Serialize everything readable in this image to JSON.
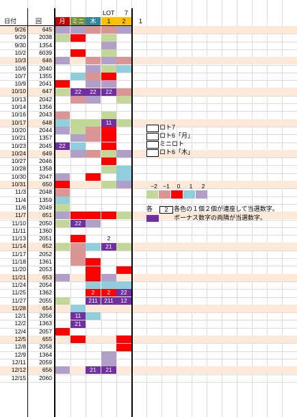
{
  "header": {
    "date_col": "日付",
    "round_col": "回",
    "lot_label": "LOT",
    "seven_label": "7",
    "col_labels": [
      "月",
      "ミニ",
      "木",
      "1",
      "2"
    ],
    "col_header_colors": [
      "#c00000",
      "#76933c",
      "#31869b",
      "#ffc000",
      "#ffc000"
    ],
    "extra_1": "1"
  },
  "colors": {
    "plus2": "#7030a0",
    "plus1": "#b1a0c7",
    "zero": "#ff0000",
    "minus1": "#da9694",
    "minus2": "#c4d79b",
    "cyan": "#92cddc",
    "highlight_row": "#fde9d9"
  },
  "rows": [
    {
      "date": "9/26",
      "num": "645",
      "hl": true,
      "cells": [
        "plus1",
        "plus1",
        "minus1",
        "minus1",
        "plus1"
      ],
      "labels": [
        "",
        "",
        "",
        "",
        ""
      ]
    },
    {
      "date": "9/29",
      "num": "2038",
      "hl": false,
      "cells": [
        "minus2",
        "zero",
        "",
        "minus2",
        ""
      ],
      "labels": [
        "",
        "",
        "",
        "",
        ""
      ]
    },
    {
      "date": "9/30",
      "num": "1354",
      "hl": false,
      "cells": [
        "",
        "",
        "",
        "plus1",
        ""
      ],
      "labels": [
        "",
        "",
        "",
        "",
        ""
      ]
    },
    {
      "date": "10/2",
      "num": "6039",
      "hl": false,
      "cells": [
        "",
        "zero",
        "",
        "minus2",
        ""
      ],
      "labels": [
        "",
        "",
        "",
        "",
        ""
      ]
    },
    {
      "date": "10/3",
      "num": "646",
      "hl": true,
      "cells": [
        "plus1",
        "",
        "minus1",
        "plus1",
        "minus1"
      ],
      "labels": [
        "",
        "",
        "",
        "",
        ""
      ]
    },
    {
      "date": "10/6",
      "num": "2040",
      "hl": false,
      "cells": [
        "",
        "",
        "plus1",
        "minus2",
        "cyan"
      ],
      "labels": [
        "",
        "",
        "",
        "",
        ""
      ]
    },
    {
      "date": "10/7",
      "num": "1355",
      "hl": false,
      "cells": [
        "",
        "cyan",
        "minus1",
        "zero",
        ""
      ],
      "labels": [
        "",
        "",
        "",
        "",
        ""
      ]
    },
    {
      "date": "10/9",
      "num": "2041",
      "hl": false,
      "cells": [
        "zero",
        "",
        "plus1",
        "plus1",
        ""
      ],
      "labels": [
        "",
        "",
        "",
        "",
        ""
      ]
    },
    {
      "date": "10/10",
      "num": "647",
      "hl": true,
      "cells": [
        "minus2",
        "plus2",
        "plus2",
        "plus2",
        "minus1"
      ],
      "labels": [
        "",
        "22",
        "22",
        "22",
        ""
      ]
    },
    {
      "date": "10/13",
      "num": "2042",
      "hl": false,
      "cells": [
        "",
        "minus1",
        "plus1",
        "",
        "minus2"
      ],
      "labels": [
        "",
        "",
        "",
        "",
        ""
      ]
    },
    {
      "date": "10/14",
      "num": "1356",
      "hl": false,
      "cells": [
        "",
        "",
        "",
        "",
        ""
      ],
      "labels": [
        "",
        "",
        "",
        "",
        ""
      ]
    },
    {
      "date": "10/16",
      "num": "2043",
      "hl": false,
      "cells": [
        "minus1",
        "",
        "",
        "minus2",
        ""
      ],
      "labels": [
        "",
        "",
        "",
        "",
        ""
      ]
    },
    {
      "date": "10/17",
      "num": "648",
      "hl": true,
      "cells": [
        "cyan",
        "minus2",
        "minus2",
        "plus2",
        "minus2"
      ],
      "labels": [
        "",
        "",
        "",
        "11",
        ""
      ]
    },
    {
      "date": "10/20",
      "num": "2044",
      "hl": false,
      "cells": [
        "plus1",
        "minus2",
        "minus1",
        "zero",
        ""
      ],
      "labels": [
        "",
        "",
        "",
        "",
        ""
      ]
    },
    {
      "date": "10/21",
      "num": "1357",
      "hl": false,
      "cells": [
        "",
        "plus1",
        "minus1",
        "zero",
        ""
      ],
      "labels": [
        "",
        "",
        "",
        "",
        ""
      ]
    },
    {
      "date": "10/23",
      "num": "2045",
      "hl": false,
      "cells": [
        "plus2",
        "cyan",
        "",
        "zero",
        ""
      ],
      "labels": [
        "22",
        "",
        "",
        "",
        ""
      ]
    },
    {
      "date": "10/24",
      "num": "649",
      "hl": true,
      "cells": [
        "",
        "plus1",
        "minus1",
        "minus2",
        "plus1"
      ],
      "labels": [
        "",
        "",
        "",
        "",
        ""
      ]
    },
    {
      "date": "10/27",
      "num": "2046",
      "hl": false,
      "cells": [
        "",
        "",
        "",
        "zero",
        ""
      ],
      "labels": [
        "",
        "",
        "",
        "",
        ""
      ]
    },
    {
      "date": "10/28",
      "num": "1358",
      "hl": false,
      "cells": [
        "",
        "",
        "",
        "minus2",
        "cyan"
      ],
      "labels": [
        "",
        "",
        "",
        "",
        ""
      ]
    },
    {
      "date": "10/30",
      "num": "2047",
      "hl": false,
      "cells": [
        "plus1",
        "",
        "zero",
        "",
        "cyan"
      ],
      "labels": [
        "",
        "",
        "",
        "",
        ""
      ]
    },
    {
      "date": "10/31",
      "num": "650",
      "hl": true,
      "cells": [
        "zero",
        "",
        "",
        "minus2",
        "plus1"
      ],
      "labels": [
        "",
        "",
        "",
        "",
        ""
      ]
    },
    {
      "date": "11/3",
      "num": "2048",
      "hl": false,
      "cells": [
        "minus1",
        "",
        "",
        "",
        ""
      ],
      "labels": [
        "",
        "",
        "",
        "",
        ""
      ]
    },
    {
      "date": "11/4",
      "num": "1359",
      "hl": false,
      "cells": [
        "cyan",
        "",
        "",
        "",
        ""
      ],
      "labels": [
        "",
        "",
        "",
        "",
        ""
      ]
    },
    {
      "date": "11/6",
      "num": "2049",
      "hl": false,
      "cells": [
        "minus2",
        "",
        "",
        "",
        ""
      ],
      "labels": [
        "",
        "",
        "",
        "",
        ""
      ]
    },
    {
      "date": "11/7",
      "num": "651",
      "hl": true,
      "cells": [
        "plus1",
        "zero",
        "zero",
        "zero",
        "minus2"
      ],
      "labels": [
        "",
        "",
        "",
        "",
        ""
      ]
    },
    {
      "date": "11/10",
      "num": "2050",
      "hl": false,
      "cells": [
        "minus2",
        "plus2",
        "plus1",
        "",
        ""
      ],
      "labels": [
        "",
        "22",
        "",
        "",
        ""
      ]
    },
    {
      "date": "11/11",
      "num": "1360",
      "hl": false,
      "cells": [
        "",
        "",
        "",
        "",
        ""
      ],
      "labels": [
        "",
        "",
        "",
        "",
        ""
      ]
    },
    {
      "date": "11/13",
      "num": "2051",
      "hl": false,
      "cells": [
        "",
        "zero",
        "",
        "",
        ""
      ],
      "labels": [
        "",
        "",
        "",
        "2",
        ""
      ]
    },
    {
      "date": "11/14",
      "num": "652",
      "hl": true,
      "cells": [
        "minus2",
        "minus1",
        "cyan",
        "plus2",
        "minus2"
      ],
      "labels": [
        "",
        "",
        "",
        "21",
        ""
      ]
    },
    {
      "date": "11/17",
      "num": "2052",
      "hl": false,
      "cells": [
        "",
        "minus1",
        "",
        "",
        ""
      ],
      "labels": [
        "",
        "",
        "",
        "",
        ""
      ]
    },
    {
      "date": "11/18",
      "num": "1361",
      "hl": false,
      "cells": [
        "",
        "minus1",
        "zero",
        "",
        ""
      ],
      "labels": [
        "",
        "",
        "",
        "",
        ""
      ]
    },
    {
      "date": "11/20",
      "num": "2053",
      "hl": false,
      "cells": [
        "",
        "",
        "zero",
        "",
        "zero"
      ],
      "labels": [
        "",
        "",
        "",
        "",
        ""
      ]
    },
    {
      "date": "11/21",
      "num": "653",
      "hl": true,
      "cells": [
        "plus1",
        "",
        "zero",
        "plus1",
        ""
      ],
      "labels": [
        "",
        "",
        "",
        "",
        ""
      ]
    },
    {
      "date": "11/24",
      "num": "2054",
      "hl": false,
      "cells": [
        "",
        "",
        "cyan",
        "cyan",
        "cyan"
      ],
      "labels": [
        "",
        "",
        "",
        "",
        ""
      ]
    },
    {
      "date": "11/25",
      "num": "1362",
      "hl": false,
      "cells": [
        "",
        "",
        "zero",
        "zero",
        "plus2"
      ],
      "labels": [
        "",
        "",
        "2",
        "2",
        "22"
      ]
    },
    {
      "date": "11/27",
      "num": "2055",
      "hl": false,
      "cells": [
        "minus2",
        "",
        "plus2",
        "plus2",
        "plus2"
      ],
      "labels": [
        "",
        "",
        "211",
        "211",
        "12"
      ]
    },
    {
      "date": "11/28",
      "num": "654",
      "hl": true,
      "cells": [
        "",
        "cyan",
        "",
        "",
        ""
      ],
      "labels": [
        "",
        "",
        "",
        "",
        ""
      ]
    },
    {
      "date": "12/1",
      "num": "2056",
      "hl": false,
      "cells": [
        "",
        "plus2",
        "cyan",
        "",
        ""
      ],
      "labels": [
        "",
        "11",
        "",
        "",
        ""
      ]
    },
    {
      "date": "12/2",
      "num": "1363",
      "hl": false,
      "cells": [
        "",
        "plus2",
        "",
        "",
        ""
      ],
      "labels": [
        "",
        "21",
        "",
        "",
        ""
      ]
    },
    {
      "date": "12/4",
      "num": "2057",
      "hl": false,
      "cells": [
        "zero",
        "",
        "",
        "",
        ""
      ],
      "labels": [
        "",
        "",
        "",
        "",
        ""
      ]
    },
    {
      "date": "12/5",
      "num": "655",
      "hl": true,
      "cells": [
        "",
        "zero",
        "",
        "",
        "zero"
      ],
      "labels": [
        "",
        "",
        "",
        "",
        ""
      ]
    },
    {
      "date": "12/8",
      "num": "2058",
      "hl": false,
      "cells": [
        "",
        "",
        "",
        "",
        "zero"
      ],
      "labels": [
        "",
        "",
        "",
        "",
        ""
      ]
    },
    {
      "date": "12/9",
      "num": "1364",
      "hl": false,
      "cells": [
        "",
        "",
        "",
        "plus1",
        ""
      ],
      "labels": [
        "",
        "",
        "",
        "",
        ""
      ]
    },
    {
      "date": "12/11",
      "num": "2059",
      "hl": false,
      "cells": [
        "",
        "",
        "",
        "plus1",
        ""
      ],
      "labels": [
        "",
        "",
        "",
        "",
        ""
      ]
    },
    {
      "date": "12/12",
      "num": "656",
      "hl": true,
      "cells": [
        "plus1",
        "",
        "plus2",
        "plus2",
        ""
      ],
      "labels": [
        "",
        "",
        "21",
        "21",
        ""
      ]
    },
    {
      "date": "12/15",
      "num": "2060",
      "hl": false,
      "cells": [
        "",
        "",
        "",
        "",
        ""
      ],
      "labels": [
        "",
        "",
        "",
        "",
        ""
      ]
    }
  ],
  "legend": [
    {
      "label": "ロト7"
    },
    {
      "label": "ロト6「月」"
    },
    {
      "label": "ミニロト"
    },
    {
      "label": "ロト6「木」"
    }
  ],
  "scale": {
    "labels": [
      "−2",
      "−1",
      "0",
      "1",
      "2"
    ],
    "colors": [
      "#c4d79b",
      "#da9694",
      "#ff0000",
      "#92cddc",
      "#b1a0c7"
    ]
  },
  "note": {
    "each": "各",
    "box_value": "2",
    "line1": "各色の１個２個が連座して当選数字。",
    "line2": "ボーナス数字の両隣が当選数字。"
  }
}
